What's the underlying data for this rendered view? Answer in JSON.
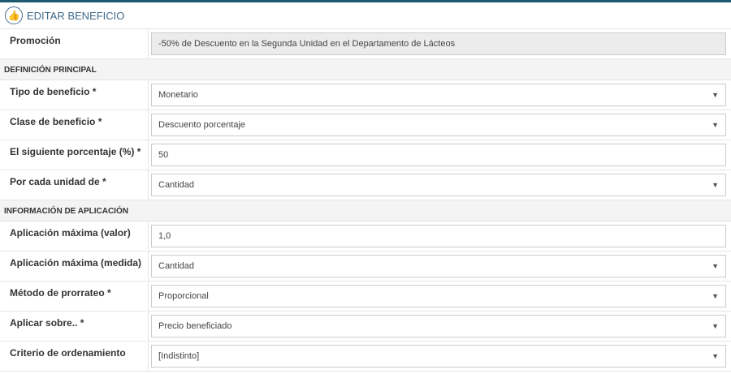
{
  "header": {
    "title": "EDITAR BENEFICIO",
    "icon": "thumbs-up-icon"
  },
  "promotion": {
    "label": "Promoción",
    "value": "-50% de Descuento en la Segunda Unidad en el Departamento de Lácteos"
  },
  "sections": [
    {
      "title": "DEFINICIÓN PRINCIPAL",
      "fields": [
        {
          "label": "Tipo de beneficio *",
          "value": "Monetario",
          "type": "select"
        },
        {
          "label": "Clase de beneficio *",
          "value": "Descuento porcentaje",
          "type": "select"
        },
        {
          "label": "El siguiente porcentaje (%) *",
          "value": "50",
          "type": "input"
        },
        {
          "label": "Por cada unidad de *",
          "value": "Cantidad",
          "type": "select"
        }
      ]
    },
    {
      "title": "INFORMACIÓN DE APLICACIÓN",
      "fields": [
        {
          "label": "Aplicación máxima (valor)",
          "value": "1,0",
          "type": "input"
        },
        {
          "label": "Aplicación máxima (medida)",
          "value": "Cantidad",
          "type": "select"
        },
        {
          "label": "Método de prorrateo *",
          "value": "Proporcional",
          "type": "select"
        },
        {
          "label": "Aplicar sobre.. *",
          "value": "Precio beneficiado",
          "type": "select"
        },
        {
          "label": "Criterio de ordenamiento",
          "value": "[Indistinto]",
          "type": "select"
        }
      ]
    }
  ]
}
